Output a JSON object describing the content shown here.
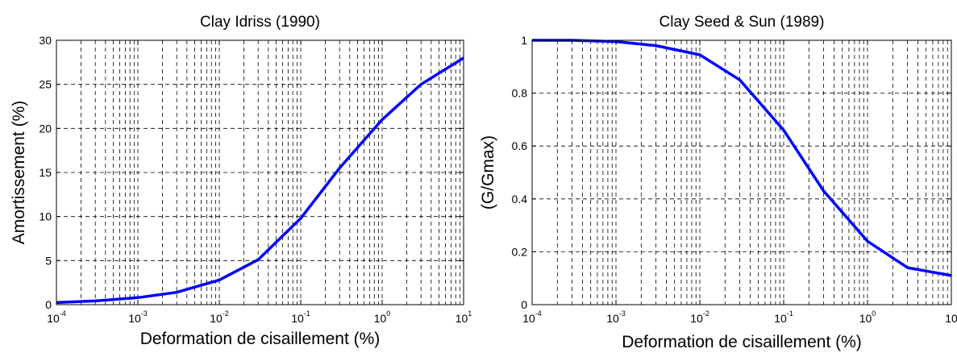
{
  "chart_data": [
    {
      "type": "line",
      "title": "Clay Idriss (1990)",
      "xlabel": "Deformation de cisaillement (%)",
      "ylabel": "Amortissement (%)",
      "xscale": "log",
      "xlim": [
        0.0001,
        10
      ],
      "ylim": [
        0,
        30
      ],
      "grid": true,
      "x_ticks": [
        {
          "base": "10",
          "exp": "-4"
        },
        {
          "base": "10",
          "exp": "-3"
        },
        {
          "base": "10",
          "exp": "-2"
        },
        {
          "base": "10",
          "exp": "-1"
        },
        {
          "base": "10",
          "exp": "0"
        },
        {
          "base": "10",
          "exp": "1"
        }
      ],
      "y_ticks": [
        "0",
        "5",
        "10",
        "15",
        "20",
        "25",
        "30"
      ],
      "color": "#0000ff",
      "series": [
        {
          "x": [
            0.0001,
            0.0003,
            0.001,
            0.003,
            0.01,
            0.03,
            0.1,
            0.3,
            1,
            3,
            10
          ],
          "y": [
            0.24,
            0.42,
            0.8,
            1.4,
            2.8,
            5.1,
            9.8,
            15.5,
            21,
            25,
            28
          ]
        }
      ]
    },
    {
      "type": "line",
      "title": "Clay Seed & Sun (1989)",
      "xlabel": "Deformation de cisaillement (%)",
      "ylabel": "(G/Gmax)",
      "xscale": "log",
      "xlim": [
        0.0001,
        10
      ],
      "ylim": [
        0,
        1
      ],
      "grid": true,
      "x_ticks": [
        {
          "base": "10",
          "exp": "-4"
        },
        {
          "base": "10",
          "exp": "-3"
        },
        {
          "base": "10",
          "exp": "-2"
        },
        {
          "base": "10",
          "exp": "-1"
        },
        {
          "base": "10",
          "exp": "0"
        },
        {
          "base": "10",
          "exp": ""
        }
      ],
      "y_ticks": [
        "0",
        "0.2",
        "0.4",
        "0.6",
        "0.8",
        "1"
      ],
      "color": "#0000ff",
      "series": [
        {
          "x": [
            0.0001,
            0.0003,
            0.001,
            0.003,
            0.01,
            0.03,
            0.1,
            0.3,
            1,
            3,
            10
          ],
          "y": [
            1.0,
            1.0,
            0.995,
            0.98,
            0.945,
            0.85,
            0.66,
            0.43,
            0.24,
            0.14,
            0.11
          ]
        }
      ]
    }
  ]
}
